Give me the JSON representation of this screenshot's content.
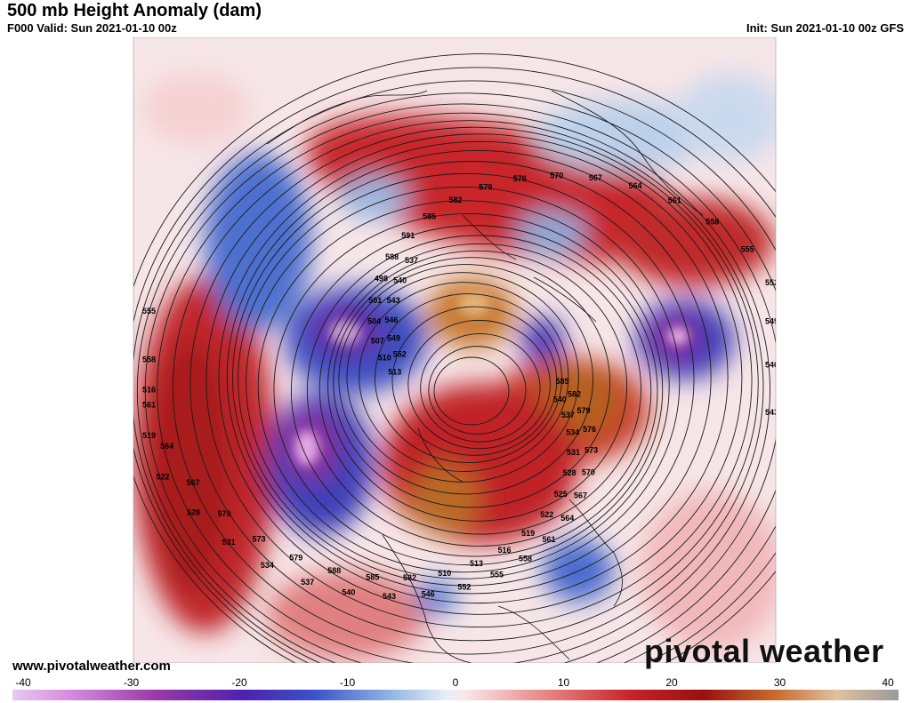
{
  "header": {
    "title": "500 mb Height Anomaly (dam)",
    "valid": "F000 Valid: Sun 2021-01-10 00z",
    "init": "Init: Sun 2021-01-10 00z GFS"
  },
  "footer": {
    "website": "www.pivotalweather.com",
    "brand_left": "pivotal",
    "brand_right": "weather"
  },
  "colors": {
    "warm_light": "#f3c3c6",
    "warm_mid": "#d64a4a",
    "warm_deep": "#b01616",
    "warm_extreme": "#c8702a",
    "cool_light": "#c8daee",
    "cool_mid": "#4a72c8",
    "cool_deep": "#2f40b2",
    "cool_extreme": "#7a2ea0"
  },
  "colorbar": {
    "ticks": [
      "-40",
      "-30",
      "-20",
      "-10",
      "0",
      "10",
      "20",
      "30",
      "40"
    ],
    "min": -40,
    "max": 40
  },
  "contour_labels": [
    "585",
    "582",
    "579",
    "576",
    "573",
    "570",
    "567",
    "564",
    "561",
    "558",
    "555",
    "552",
    "549",
    "546",
    "543",
    "540",
    "537",
    "534",
    "531",
    "528",
    "525",
    "522",
    "519",
    "516",
    "513",
    "510",
    "507",
    "504",
    "501",
    "498",
    "591",
    "588"
  ],
  "map_labels": [
    "585",
    "582",
    "579",
    "576",
    "573",
    "570",
    "567",
    "564",
    "561",
    "558",
    "555",
    "552",
    "546",
    "543",
    "540",
    "537",
    "534",
    "531",
    "528",
    "522",
    "519",
    "516",
    "513",
    "510",
    "507",
    "504",
    "501",
    "498",
    "588",
    "591",
    "585",
    "582",
    "579",
    "576",
    "570",
    "567",
    "564",
    "561",
    "558",
    "555",
    "552",
    "549",
    "546",
    "543",
    "540",
    "537",
    "534",
    "531",
    "528",
    "525",
    "522",
    "519",
    "516",
    "513",
    "510",
    "582",
    "585",
    "588",
    "579",
    "573",
    "570",
    "567",
    "564",
    "561",
    "558",
    "555",
    "552",
    "549",
    "546",
    "543",
    "540",
    "537"
  ]
}
